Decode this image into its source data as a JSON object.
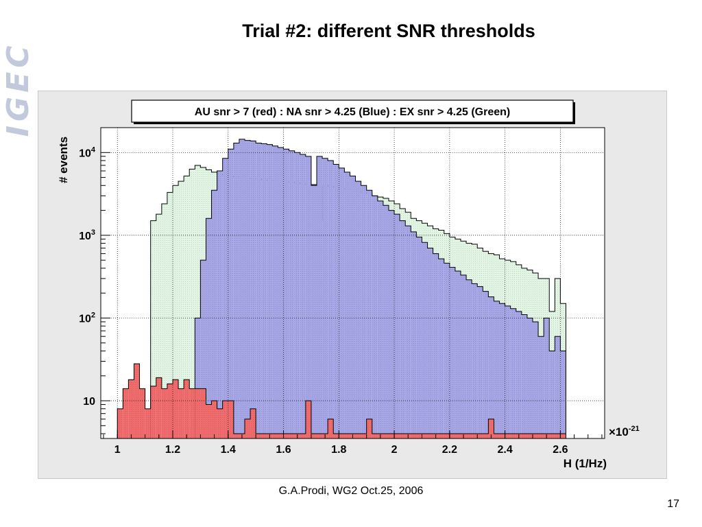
{
  "slide": {
    "title": "Trial #2: different SNR thresholds",
    "logo": "IGEC",
    "footer": "G.A.Prodi, WG2  Oct.25, 2006",
    "page_number": "17"
  },
  "colors": {
    "blue_fill": "#a6a6e6",
    "green_fill": "#e2f5e4",
    "red_fill": "#f06c6c",
    "frame_bg": "#e9e9e9",
    "plot_bg": "#ffffff"
  },
  "chart_data": {
    "type": "histogram",
    "legend_text": "AU snr > 7 (red) : NA snr > 4.25 (Blue) : EX snr > 4.25 (Green)",
    "legend_placement": "top",
    "xlabel": "H (1/Hz)",
    "ylabel": "# events",
    "x_multiplier": {
      "base": "×10",
      "exponent": "-21"
    },
    "x_ticks": [
      "1",
      "1.2",
      "1.4",
      "1.6",
      "1.8",
      "2",
      "2.2",
      "2.4",
      "2.6"
    ],
    "y_ticks": [
      {
        "value": 10,
        "base": "10",
        "exp": ""
      },
      {
        "value": 100,
        "base": "10",
        "exp": "2"
      },
      {
        "value": 1000,
        "base": "10",
        "exp": "3"
      },
      {
        "value": 10000,
        "base": "10",
        "exp": "4"
      }
    ],
    "xlim": [
      0.94,
      2.76
    ],
    "ylim": [
      3.5,
      20000
    ],
    "y_scale": "log",
    "grid": true,
    "series": [
      {
        "color": "green",
        "fill": "#e2f5e4",
        "x": [
          1.13,
          1.15,
          1.17,
          1.19,
          1.21,
          1.23,
          1.25,
          1.27,
          1.29,
          1.31,
          1.33,
          1.35,
          1.37,
          1.39,
          1.41,
          1.43,
          1.45,
          1.47,
          1.49,
          1.51,
          1.53,
          1.55,
          1.57,
          1.59,
          1.61,
          1.63,
          1.65,
          1.67,
          1.69,
          1.71,
          1.73,
          1.75,
          1.77,
          1.79,
          1.81,
          1.83,
          1.85,
          1.87,
          1.89,
          1.91,
          1.93,
          1.95,
          1.97,
          1.99,
          2.01,
          2.03,
          2.05,
          2.07,
          2.09,
          2.11,
          2.13,
          2.15,
          2.17,
          2.19,
          2.21,
          2.23,
          2.25,
          2.27,
          2.29,
          2.31,
          2.33,
          2.35,
          2.37,
          2.39,
          2.41,
          2.43,
          2.45,
          2.47,
          2.49,
          2.51,
          2.53,
          2.55,
          2.57,
          2.59,
          2.61
        ],
        "values": [
          1500,
          1800,
          2400,
          3300,
          4000,
          4500,
          5200,
          6300,
          7000,
          6600,
          6200,
          5800,
          5500,
          5300,
          5200,
          5100,
          5000,
          4900,
          4800,
          4800,
          4700,
          4600,
          4600,
          4500,
          4500,
          4400,
          4300,
          4200,
          4100,
          4100,
          1500,
          4000,
          3900,
          3800,
          3700,
          3600,
          3500,
          3400,
          3300,
          3200,
          3000,
          2900,
          2800,
          2600,
          2400,
          2100,
          1900,
          1600,
          1500,
          1400,
          1300,
          1200,
          1150,
          1050,
          950,
          900,
          850,
          800,
          780,
          700,
          640,
          600,
          580,
          520,
          500,
          480,
          440,
          400,
          380,
          350,
          300,
          300,
          120,
          300,
          150
        ]
      },
      {
        "color": "blue",
        "fill": "#a6a6e6",
        "x": [
          1.29,
          1.31,
          1.33,
          1.35,
          1.37,
          1.39,
          1.41,
          1.43,
          1.45,
          1.47,
          1.49,
          1.51,
          1.53,
          1.55,
          1.57,
          1.59,
          1.61,
          1.63,
          1.65,
          1.67,
          1.69,
          1.71,
          1.73,
          1.75,
          1.77,
          1.79,
          1.81,
          1.83,
          1.85,
          1.87,
          1.89,
          1.91,
          1.93,
          1.95,
          1.97,
          1.99,
          2.01,
          2.03,
          2.05,
          2.07,
          2.09,
          2.11,
          2.13,
          2.15,
          2.17,
          2.19,
          2.21,
          2.23,
          2.25,
          2.27,
          2.29,
          2.31,
          2.33,
          2.35,
          2.37,
          2.39,
          2.41,
          2.43,
          2.45,
          2.47,
          2.49,
          2.51,
          2.53,
          2.55,
          2.57,
          2.59,
          2.61
        ],
        "values": [
          100,
          500,
          1600,
          3500,
          6000,
          8500,
          11000,
          13000,
          14500,
          14000,
          13800,
          13000,
          12800,
          12500,
          12000,
          11500,
          11000,
          10500,
          10000,
          9500,
          9000,
          4000,
          9000,
          8500,
          8000,
          7200,
          6500,
          5800,
          5200,
          4500,
          4000,
          3500,
          3000,
          2600,
          2300,
          2000,
          1800,
          1500,
          1300,
          1100,
          950,
          820,
          700,
          600,
          520,
          460,
          410,
          370,
          330,
          290,
          260,
          240,
          210,
          180,
          160,
          150,
          140,
          130,
          120,
          110,
          100,
          90,
          60,
          100,
          40,
          60,
          40
        ]
      },
      {
        "color": "red",
        "fill": "#f06c6c",
        "x": [
          1.01,
          1.03,
          1.05,
          1.07,
          1.09,
          1.11,
          1.13,
          1.15,
          1.17,
          1.19,
          1.21,
          1.23,
          1.25,
          1.27,
          1.29,
          1.31,
          1.33,
          1.35,
          1.37,
          1.39,
          1.41,
          1.43,
          1.45,
          1.47,
          1.49,
          1.51,
          1.53,
          1.55,
          1.57,
          1.59,
          1.61,
          1.63,
          1.65,
          1.67,
          1.69,
          1.71,
          1.73,
          1.75,
          1.77,
          1.79,
          1.81,
          1.83,
          1.85,
          1.87,
          1.89,
          1.91,
          1.93,
          1.95,
          1.97,
          1.99,
          2.01,
          2.03,
          2.05,
          2.07,
          2.09,
          2.11,
          2.13,
          2.15,
          2.17,
          2.19,
          2.21,
          2.23,
          2.25,
          2.27,
          2.29,
          2.31,
          2.33,
          2.35,
          2.37,
          2.39,
          2.41,
          2.43,
          2.45,
          2.47,
          2.49,
          2.51,
          2.53,
          2.55,
          2.57,
          2.59,
          2.61
        ],
        "values": [
          8,
          14,
          18,
          28,
          14,
          8,
          15,
          19,
          14,
          16,
          18,
          14,
          18,
          14,
          14,
          14,
          9,
          10,
          8,
          10,
          10,
          4,
          4,
          6,
          8,
          4,
          4,
          4,
          4,
          4,
          4,
          4,
          4,
          4,
          10,
          4,
          4,
          4,
          6,
          4,
          4,
          4,
          4,
          4,
          4,
          6,
          4,
          4,
          4,
          4,
          4,
          4,
          4,
          4,
          4,
          4,
          4,
          4,
          4,
          4,
          4,
          4,
          4,
          4,
          4,
          4,
          4,
          6,
          4,
          4,
          4,
          4,
          4,
          4,
          4,
          4,
          4,
          4,
          4,
          4,
          4
        ]
      }
    ]
  }
}
